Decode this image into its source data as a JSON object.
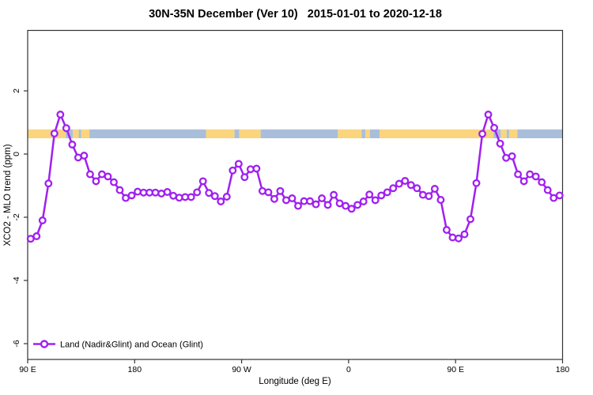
{
  "page": {
    "background": "#ffffff"
  },
  "chart_data": {
    "type": "line",
    "title": "30N-35N December (Ver 10)   2015-01-01 to 2020-12-18",
    "xlabel": "Longitude (deg E)",
    "ylabel": "XCO2 - MLO trend (ppm)",
    "xlim": [
      90,
      540
    ],
    "ylim": [
      -6.5,
      3.9
    ],
    "grid": "off",
    "frame_color": "#333333",
    "x_ticks": [
      {
        "lon": 90,
        "label": "90 E"
      },
      {
        "lon": 180,
        "label": "180"
      },
      {
        "lon": 270,
        "label": "90 W"
      },
      {
        "lon": 360,
        "label": "0"
      },
      {
        "lon": 450,
        "label": "90 E"
      },
      {
        "lon": 540,
        "label": "180"
      }
    ],
    "y_ticks": [
      {
        "value": 2,
        "label": "2"
      },
      {
        "value": 0,
        "label": "0"
      },
      {
        "value": -2,
        "label": "-2"
      },
      {
        "value": -4,
        "label": "-4"
      },
      {
        "value": -6,
        "label": "-6"
      }
    ],
    "legend": {
      "position": "bottom-left",
      "entries": [
        {
          "label": "Land (Nadir&Glint) and Ocean (Glint)",
          "color": "#A020F0",
          "marker": "open-circle"
        }
      ]
    },
    "series": [
      {
        "name": "Land (Nadir&Glint) and Ocean (Glint)",
        "color": "#A020F0",
        "marker_fill": "#ffffff",
        "points": [
          [
            92.5,
            -2.68
          ],
          [
            97.5,
            -2.6
          ],
          [
            102.5,
            -2.1
          ],
          [
            107.5,
            -0.93
          ],
          [
            112.5,
            0.65
          ],
          [
            117.5,
            1.25
          ],
          [
            122.5,
            0.82
          ],
          [
            127.5,
            0.3
          ],
          [
            132.5,
            -0.11
          ],
          [
            137.5,
            -0.05
          ],
          [
            142.5,
            -0.64
          ],
          [
            147.5,
            -0.86
          ],
          [
            152.5,
            -0.64
          ],
          [
            157.5,
            -0.71
          ],
          [
            162.5,
            -0.89
          ],
          [
            167.5,
            -1.14
          ],
          [
            172.5,
            -1.39
          ],
          [
            177.5,
            -1.31
          ],
          [
            182.5,
            -1.19
          ],
          [
            187.5,
            -1.22
          ],
          [
            192.5,
            -1.22
          ],
          [
            197.5,
            -1.22
          ],
          [
            202.5,
            -1.25
          ],
          [
            207.5,
            -1.2
          ],
          [
            212.5,
            -1.32
          ],
          [
            217.5,
            -1.38
          ],
          [
            222.5,
            -1.36
          ],
          [
            227.5,
            -1.36
          ],
          [
            232.5,
            -1.21
          ],
          [
            237.5,
            -0.86
          ],
          [
            242.5,
            -1.23
          ],
          [
            247.5,
            -1.33
          ],
          [
            252.5,
            -1.5
          ],
          [
            257.5,
            -1.35
          ],
          [
            262.5,
            -0.52
          ],
          [
            267.5,
            -0.31
          ],
          [
            272.5,
            -0.73
          ],
          [
            277.5,
            -0.48
          ],
          [
            282.5,
            -0.46
          ],
          [
            287.5,
            -1.17
          ],
          [
            292.5,
            -1.21
          ],
          [
            297.5,
            -1.42
          ],
          [
            302.5,
            -1.17
          ],
          [
            307.5,
            -1.46
          ],
          [
            312.5,
            -1.4
          ],
          [
            317.5,
            -1.64
          ],
          [
            322.5,
            -1.49
          ],
          [
            327.5,
            -1.49
          ],
          [
            332.5,
            -1.59
          ],
          [
            337.5,
            -1.4
          ],
          [
            342.5,
            -1.61
          ],
          [
            347.5,
            -1.29
          ],
          [
            352.5,
            -1.56
          ],
          [
            357.5,
            -1.64
          ],
          [
            362.5,
            -1.73
          ],
          [
            367.5,
            -1.61
          ],
          [
            372.5,
            -1.5
          ],
          [
            377.5,
            -1.28
          ],
          [
            382.5,
            -1.46
          ],
          [
            387.5,
            -1.31
          ],
          [
            392.5,
            -1.21
          ],
          [
            397.5,
            -1.08
          ],
          [
            402.5,
            -0.94
          ],
          [
            407.5,
            -0.85
          ],
          [
            412.5,
            -0.98
          ],
          [
            417.5,
            -1.08
          ],
          [
            422.5,
            -1.29
          ],
          [
            427.5,
            -1.33
          ],
          [
            432.5,
            -1.1
          ],
          [
            437.5,
            -1.45
          ],
          [
            442.5,
            -2.4
          ],
          [
            447.5,
            -2.64
          ],
          [
            452.5,
            -2.67
          ],
          [
            457.5,
            -2.54
          ],
          [
            462.5,
            -2.06
          ],
          [
            467.5,
            -0.92
          ],
          [
            472.5,
            0.64
          ],
          [
            477.5,
            1.25
          ],
          [
            482.5,
            0.83
          ],
          [
            487.5,
            0.33
          ],
          [
            492.5,
            -0.12
          ],
          [
            497.5,
            -0.07
          ],
          [
            502.5,
            -0.64
          ],
          [
            507.5,
            -0.86
          ],
          [
            512.5,
            -0.64
          ],
          [
            517.5,
            -0.71
          ],
          [
            522.5,
            -0.89
          ],
          [
            527.5,
            -1.14
          ],
          [
            532.5,
            -1.39
          ],
          [
            537.5,
            -1.31
          ]
        ]
      }
    ],
    "map_strip": {
      "description": "30N-35N latitude band land/ocean map strip",
      "value_range": [
        0.5,
        0.78
      ],
      "land_color": "#FAD57E",
      "ocean_color": "#A9BEDB",
      "segments": [
        {
          "from": 90,
          "to": 122,
          "surface": "land"
        },
        {
          "from": 122,
          "to": 128,
          "surface": "ocean"
        },
        {
          "from": 128,
          "to": 133,
          "surface": "land"
        },
        {
          "from": 133,
          "to": 135,
          "surface": "ocean"
        },
        {
          "from": 135,
          "to": 142,
          "surface": "land"
        },
        {
          "from": 142,
          "to": 240,
          "surface": "ocean"
        },
        {
          "from": 240,
          "to": 264,
          "surface": "land"
        },
        {
          "from": 264,
          "to": 268,
          "surface": "ocean"
        },
        {
          "from": 268,
          "to": 286,
          "surface": "land"
        },
        {
          "from": 286,
          "to": 351,
          "surface": "ocean"
        },
        {
          "from": 351,
          "to": 371,
          "surface": "land"
        },
        {
          "from": 371,
          "to": 374,
          "surface": "ocean"
        },
        {
          "from": 374,
          "to": 378,
          "surface": "land"
        },
        {
          "from": 378,
          "to": 386,
          "surface": "ocean"
        },
        {
          "from": 386,
          "to": 482,
          "surface": "land"
        },
        {
          "from": 482,
          "to": 488,
          "surface": "ocean"
        },
        {
          "from": 488,
          "to": 493,
          "surface": "land"
        },
        {
          "from": 493,
          "to": 495,
          "surface": "ocean"
        },
        {
          "from": 495,
          "to": 502,
          "surface": "land"
        },
        {
          "from": 502,
          "to": 540,
          "surface": "ocean"
        }
      ]
    }
  }
}
